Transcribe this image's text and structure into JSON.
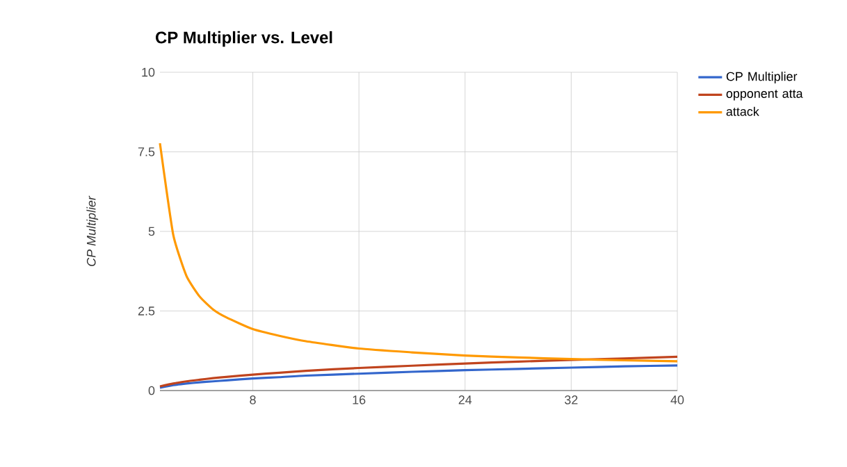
{
  "chart_data": {
    "type": "line",
    "title": "CP Multiplier vs. Level",
    "ylabel": "CP Multiplier",
    "x": [
      1,
      2,
      3,
      4,
      5,
      6,
      8,
      10,
      12,
      16,
      20,
      24,
      28,
      32,
      36,
      40
    ],
    "series": [
      {
        "name": "CP Multiplier",
        "color": "#3366cc",
        "values": [
          0.09,
          0.17,
          0.22,
          0.26,
          0.29,
          0.32,
          0.38,
          0.42,
          0.47,
          0.53,
          0.59,
          0.64,
          0.68,
          0.72,
          0.76,
          0.79
        ]
      },
      {
        "name": "opponent atta",
        "color": "#c0441e",
        "values": [
          0.13,
          0.22,
          0.29,
          0.34,
          0.39,
          0.43,
          0.5,
          0.56,
          0.62,
          0.71,
          0.78,
          0.85,
          0.91,
          0.96,
          1.01,
          1.06
        ]
      },
      {
        "name": "attack",
        "color": "#ff9900",
        "values": [
          7.77,
          4.9,
          3.6,
          2.95,
          2.55,
          2.3,
          1.93,
          1.72,
          1.55,
          1.32,
          1.2,
          1.1,
          1.04,
          0.99,
          0.95,
          0.92
        ]
      }
    ],
    "xlim": [
      1,
      40
    ],
    "xticks": [
      8,
      16,
      24,
      32,
      40
    ],
    "ylim": [
      0,
      10
    ],
    "yticks": [
      0,
      2.5,
      5,
      7.5,
      10
    ],
    "grid": true,
    "legend": "top right",
    "marker": "none",
    "line_style": "solid"
  }
}
